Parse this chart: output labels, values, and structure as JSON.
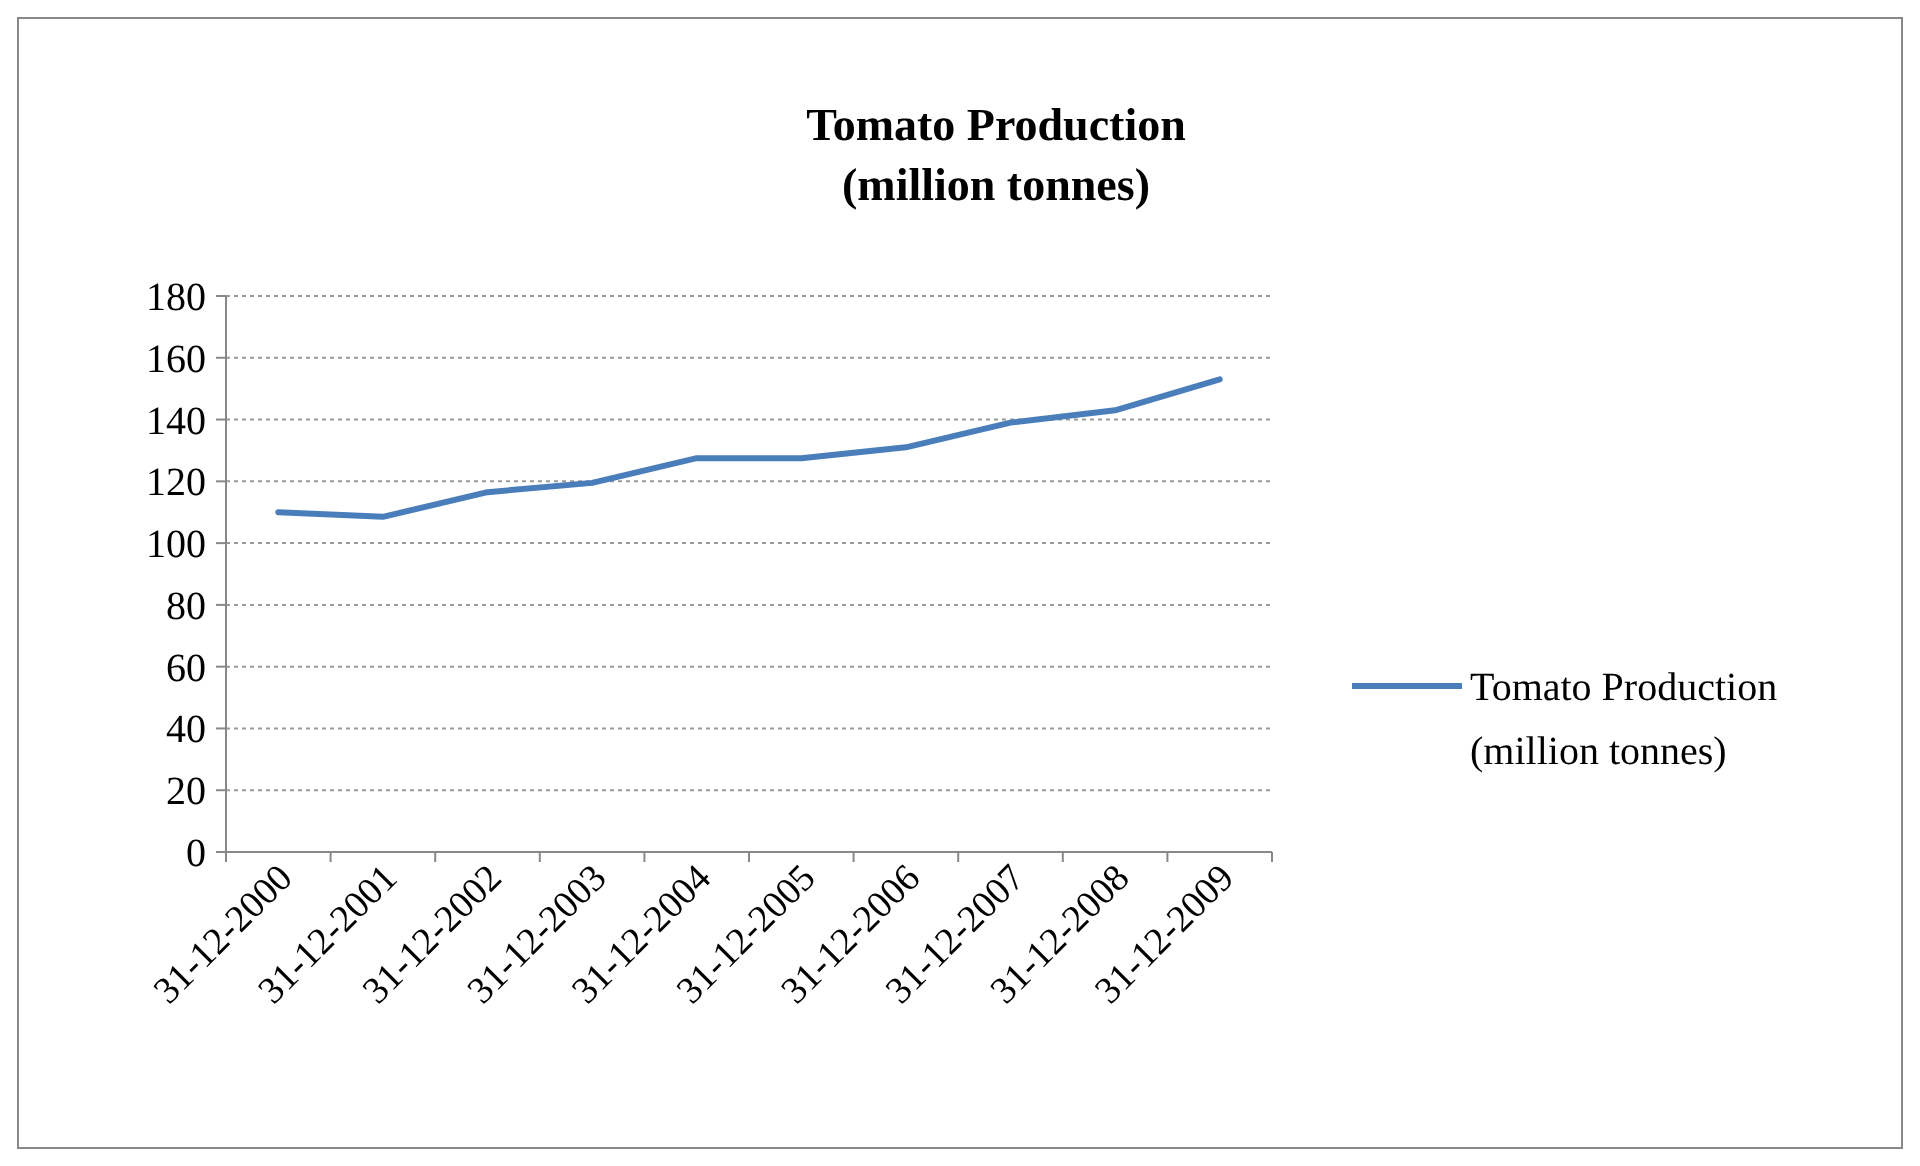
{
  "chart_data": {
    "type": "line",
    "title": "Tomato Production\n(million tonnes)",
    "categories": [
      "31-12-2000",
      "31-12-2001",
      "31-12-2002",
      "31-12-2003",
      "31-12-2004",
      "31-12-2005",
      "31-12-2006",
      "31-12-2007",
      "31-12-2008",
      "31-12-2009"
    ],
    "series": [
      {
        "name": "Tomato Production\n(million tonnes)",
        "color": "#4a7ebb",
        "values": [
          110,
          108.5,
          116.5,
          119.5,
          127.5,
          127.5,
          131,
          139,
          143,
          153
        ]
      }
    ],
    "ylim": [
      0,
      180
    ],
    "yticks": [
      0,
      20,
      40,
      60,
      80,
      100,
      120,
      140,
      160,
      180
    ],
    "grid": "y",
    "legend": "right",
    "marker": "none"
  }
}
